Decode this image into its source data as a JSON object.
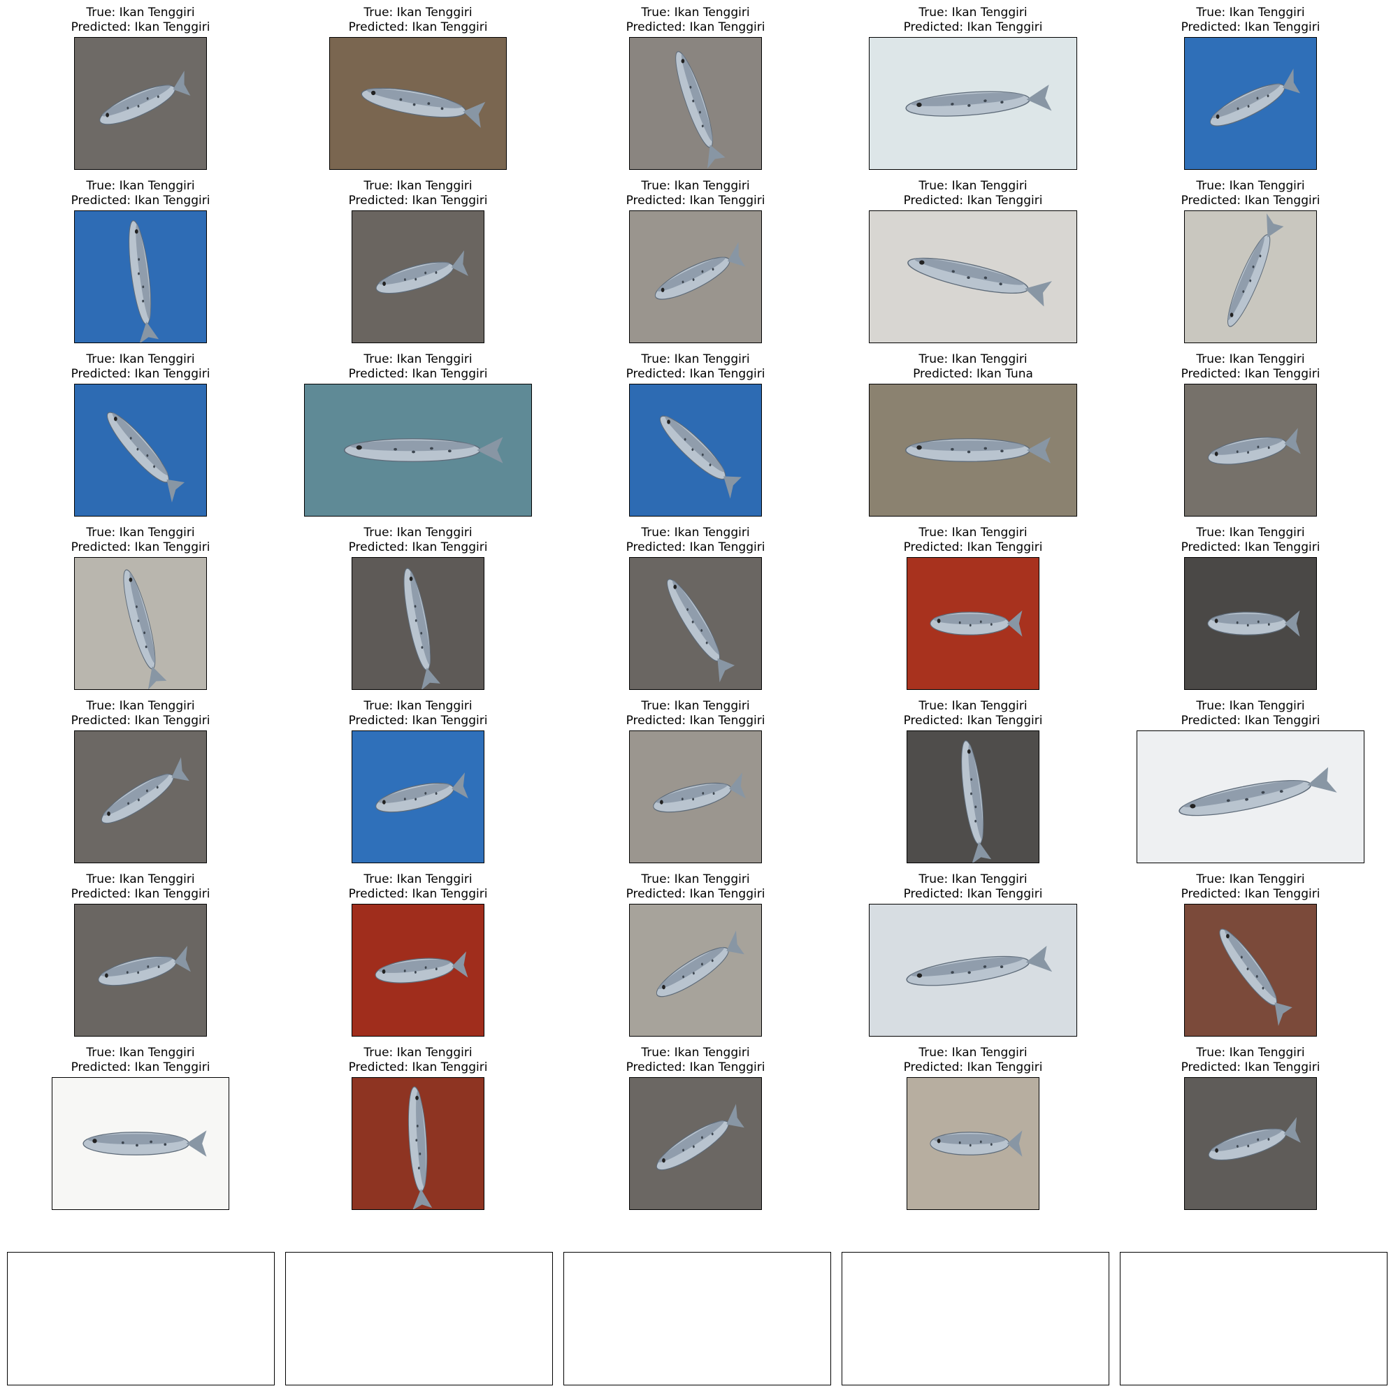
{
  "true_prefix": "True: ",
  "pred_prefix": "Predicted: ",
  "images": [
    {
      "true": "Ikan Tenggiri",
      "pred": "Ikan Tenggiri",
      "bg": "#6e6a66",
      "shape": "square"
    },
    {
      "true": "Ikan Tenggiri",
      "pred": "Ikan Tenggiri",
      "bg": "#7a6650",
      "shape": "wide"
    },
    {
      "true": "Ikan Tenggiri",
      "pred": "Ikan Tenggiri",
      "bg": "#8a8580",
      "shape": "square"
    },
    {
      "true": "Ikan Tenggiri",
      "pred": "Ikan Tenggiri",
      "bg": "#dde6e8",
      "shape": "wider"
    },
    {
      "true": "Ikan Tenggiri",
      "pred": "Ikan Tenggiri",
      "bg": "#2f6fb8",
      "shape": "square"
    },
    {
      "true": "Ikan Tenggiri",
      "pred": "Ikan Tenggiri",
      "bg": "#2e6cb5",
      "shape": "square"
    },
    {
      "true": "Ikan Tenggiri",
      "pred": "Ikan Tenggiri",
      "bg": "#6a6560",
      "shape": "square"
    },
    {
      "true": "Ikan Tenggiri",
      "pred": "Ikan Tenggiri",
      "bg": "#9a958e",
      "shape": "square"
    },
    {
      "true": "Ikan Tenggiri",
      "pred": "Ikan Tenggiri",
      "bg": "#d8d6d2",
      "shape": "wider"
    },
    {
      "true": "Ikan Tenggiri",
      "pred": "Ikan Tenggiri",
      "bg": "#c9c7bf",
      "shape": "square"
    },
    {
      "true": "Ikan Tenggiri",
      "pred": "Ikan Tenggiri",
      "bg": "#2d6bb3",
      "shape": "square"
    },
    {
      "true": "Ikan Tenggiri",
      "pred": "Ikan Tenggiri",
      "bg": "#5f8a96",
      "shape": "widest"
    },
    {
      "true": "Ikan Tenggiri",
      "pred": "Ikan Tenggiri",
      "bg": "#2d6bb3",
      "shape": "square"
    },
    {
      "true": "Ikan Tenggiri",
      "pred": "Ikan Tuna",
      "bg": "#8b8270",
      "shape": "wider"
    },
    {
      "true": "Ikan Tenggiri",
      "pred": "Ikan Tenggiri",
      "bg": "#76716a",
      "shape": "square"
    },
    {
      "true": "Ikan Tenggiri",
      "pred": "Ikan Tenggiri",
      "bg": "#b9b6ae",
      "shape": "square"
    },
    {
      "true": "Ikan Tenggiri",
      "pred": "Ikan Tenggiri",
      "bg": "#5e5a57",
      "shape": "square"
    },
    {
      "true": "Ikan Tenggiri",
      "pred": "Ikan Tenggiri",
      "bg": "#6a6662",
      "shape": "square"
    },
    {
      "true": "Ikan Tenggiri",
      "pred": "Ikan Tenggiri",
      "bg": "#a8321e",
      "shape": "square"
    },
    {
      "true": "Ikan Tenggiri",
      "pred": "Ikan Tenggiri",
      "bg": "#4a4846",
      "shape": "square"
    },
    {
      "true": "Ikan Tenggiri",
      "pred": "Ikan Tenggiri",
      "bg": "#6c6864",
      "shape": "square"
    },
    {
      "true": "Ikan Tenggiri",
      "pred": "Ikan Tenggiri",
      "bg": "#2f70ba",
      "shape": "square"
    },
    {
      "true": "Ikan Tenggiri",
      "pred": "Ikan Tenggiri",
      "bg": "#9b968f",
      "shape": "square"
    },
    {
      "true": "Ikan Tenggiri",
      "pred": "Ikan Tenggiri",
      "bg": "#4f4d4b",
      "shape": "square"
    },
    {
      "true": "Ikan Tenggiri",
      "pred": "Ikan Tenggiri",
      "bg": "#eef0f2",
      "shape": "widest"
    },
    {
      "true": "Ikan Tenggiri",
      "pred": "Ikan Tenggiri",
      "bg": "#6a6662",
      "shape": "square"
    },
    {
      "true": "Ikan Tenggiri",
      "pred": "Ikan Tenggiri",
      "bg": "#a02d1c",
      "shape": "square"
    },
    {
      "true": "Ikan Tenggiri",
      "pred": "Ikan Tenggiri",
      "bg": "#a7a39b",
      "shape": "square"
    },
    {
      "true": "Ikan Tenggiri",
      "pred": "Ikan Tenggiri",
      "bg": "#d7dde2",
      "shape": "wider"
    },
    {
      "true": "Ikan Tenggiri",
      "pred": "Ikan Tenggiri",
      "bg": "#7b4a3a",
      "shape": "square"
    },
    {
      "true": "Ikan Tenggiri",
      "pred": "Ikan Tenggiri",
      "bg": "#f7f7f5",
      "shape": "wide"
    },
    {
      "true": "Ikan Tenggiri",
      "pred": "Ikan Tenggiri",
      "bg": "#8e3422",
      "shape": "square"
    },
    {
      "true": "Ikan Tenggiri",
      "pred": "Ikan Tenggiri",
      "bg": "#6b6763",
      "shape": "square"
    },
    {
      "true": "Ikan Tenggiri",
      "pred": "Ikan Tenggiri",
      "bg": "#b7aea0",
      "shape": "square"
    },
    {
      "true": "Ikan Tenggiri",
      "pred": "Ikan Tenggiri",
      "bg": "#5f5c59",
      "shape": "square"
    }
  ],
  "empty_axes_count": 5
}
